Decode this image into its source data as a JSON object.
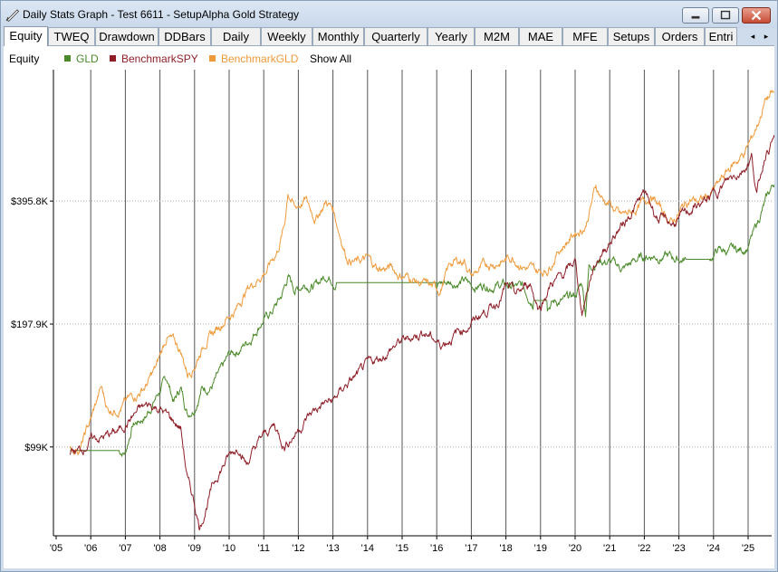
{
  "window": {
    "title": "Daily Stats Graph - Test 6611 - SetupAlpha Gold Strategy",
    "icons": {
      "app": "graph-pen-icon",
      "minimize": "minimize-icon",
      "maximize": "maximize-icon",
      "close": "close-icon"
    }
  },
  "tabs": [
    {
      "label": "Equity",
      "active": true
    },
    {
      "label": "TWEQ"
    },
    {
      "label": "Drawdown"
    },
    {
      "label": "DDBars"
    },
    {
      "label": "Daily"
    },
    {
      "label": "Weekly"
    },
    {
      "label": "Monthly"
    },
    {
      "label": "Quarterly"
    },
    {
      "label": "Yearly"
    },
    {
      "label": "M2M"
    },
    {
      "label": "MAE"
    },
    {
      "label": "MFE"
    },
    {
      "label": "Setups"
    },
    {
      "label": "Orders"
    },
    {
      "label": "Entri"
    }
  ],
  "tab_scroll": {
    "left": "◂",
    "right": "▸",
    "left_icon": "arrow-left-icon",
    "right_icon": "arrow-right-icon"
  },
  "legend": {
    "label": "Equity",
    "show_all": "Show All",
    "items": [
      {
        "name": "GLD",
        "color": "#4a8a2a"
      },
      {
        "name": "BenchmarkSPY",
        "color": "#8e1f28"
      },
      {
        "name": "BenchmarkGLD",
        "color": "#ef9a3a"
      }
    ]
  },
  "chart_data": {
    "type": "line",
    "x_ticks": [
      "'05",
      "'06",
      "'07",
      "'08",
      "'09",
      "'10",
      "'11",
      "'12",
      "'13",
      "'14",
      "'15",
      "'16",
      "'17",
      "'18",
      "'19",
      "'20",
      "'21",
      "'22",
      "'23",
      "'24",
      "'25"
    ],
    "y_scale": "log",
    "y_ticks": [
      {
        "label": "$99K",
        "value": 99000
      },
      {
        "label": "$197.9K",
        "value": 197900
      },
      {
        "label": "$395.8K",
        "value": 395800
      }
    ],
    "ylim": [
      60000,
      830000
    ],
    "grid": true,
    "series": [
      {
        "name": "GLD",
        "color": "#4a8a2a",
        "points": [
          [
            2005.4,
            97000
          ],
          [
            2005.8,
            97000
          ],
          [
            2006.3,
            97000
          ],
          [
            2006.8,
            97000
          ],
          [
            2007.0,
            96000
          ],
          [
            2007.2,
            112000
          ],
          [
            2007.6,
            118000
          ],
          [
            2007.9,
            132000
          ],
          [
            2008.2,
            145000
          ],
          [
            2008.4,
            128000
          ],
          [
            2008.6,
            138000
          ],
          [
            2008.8,
            120000
          ],
          [
            2009.0,
            125000
          ],
          [
            2009.2,
            138000
          ],
          [
            2009.5,
            140000
          ],
          [
            2009.8,
            152000
          ],
          [
            2010.0,
            165000
          ],
          [
            2010.3,
            172000
          ],
          [
            2010.6,
            182000
          ],
          [
            2010.9,
            200000
          ],
          [
            2011.2,
            210000
          ],
          [
            2011.5,
            230000
          ],
          [
            2011.7,
            258000
          ],
          [
            2011.9,
            240000
          ],
          [
            2012.2,
            250000
          ],
          [
            2012.5,
            245000
          ],
          [
            2012.8,
            262000
          ],
          [
            2013.0,
            257000
          ],
          [
            2013.1,
            250000
          ],
          [
            2013.5,
            250000
          ],
          [
            2014.0,
            250000
          ],
          [
            2015.0,
            250000
          ],
          [
            2016.0,
            250000
          ],
          [
            2016.4,
            251000
          ],
          [
            2016.8,
            252000
          ],
          [
            2017.0,
            245000
          ],
          [
            2017.5,
            248000
          ],
          [
            2018.0,
            246000
          ],
          [
            2018.5,
            242000
          ],
          [
            2018.8,
            226000
          ],
          [
            2019.2,
            226000
          ],
          [
            2019.7,
            225000
          ],
          [
            2020.0,
            232000
          ],
          [
            2020.2,
            250000
          ],
          [
            2020.3,
            212000
          ],
          [
            2020.4,
            275000
          ],
          [
            2020.7,
            285000
          ],
          [
            2021.0,
            280000
          ],
          [
            2021.4,
            270000
          ],
          [
            2021.8,
            285000
          ],
          [
            2022.2,
            292000
          ],
          [
            2022.6,
            290000
          ],
          [
            2022.9,
            286000
          ],
          [
            2023.2,
            285000
          ],
          [
            2023.5,
            285000
          ],
          [
            2023.9,
            285000
          ],
          [
            2024.1,
            300000
          ],
          [
            2024.5,
            298000
          ],
          [
            2024.8,
            300000
          ],
          [
            2025.0,
            308000
          ],
          [
            2025.2,
            335000
          ],
          [
            2025.4,
            375000
          ],
          [
            2025.6,
            410000
          ],
          [
            2025.8,
            450000
          ]
        ]
      },
      {
        "name": "BenchmarkSPY",
        "color": "#8e1f28",
        "points": [
          [
            2005.4,
            96000
          ],
          [
            2005.7,
            97000
          ],
          [
            2006.0,
            103000
          ],
          [
            2006.4,
            105000
          ],
          [
            2006.8,
            108000
          ],
          [
            2007.0,
            113000
          ],
          [
            2007.4,
            122000
          ],
          [
            2007.7,
            125000
          ],
          [
            2008.0,
            123000
          ],
          [
            2008.3,
            116000
          ],
          [
            2008.6,
            110000
          ],
          [
            2008.8,
            82000
          ],
          [
            2009.0,
            72000
          ],
          [
            2009.15,
            63000
          ],
          [
            2009.4,
            74000
          ],
          [
            2009.7,
            86000
          ],
          [
            2010.0,
            94000
          ],
          [
            2010.3,
            100000
          ],
          [
            2010.5,
            90000
          ],
          [
            2010.9,
            103000
          ],
          [
            2011.3,
            112000
          ],
          [
            2011.6,
            100000
          ],
          [
            2011.9,
            107000
          ],
          [
            2012.3,
            118000
          ],
          [
            2012.7,
            126000
          ],
          [
            2013.0,
            128000
          ],
          [
            2013.4,
            141000
          ],
          [
            2013.8,
            150000
          ],
          [
            2014.0,
            156000
          ],
          [
            2014.5,
            167000
          ],
          [
            2014.9,
            178000
          ],
          [
            2015.3,
            184000
          ],
          [
            2015.6,
            190000
          ],
          [
            2015.9,
            183000
          ],
          [
            2016.1,
            176000
          ],
          [
            2016.5,
            186000
          ],
          [
            2016.9,
            196000
          ],
          [
            2017.3,
            210000
          ],
          [
            2017.7,
            222000
          ],
          [
            2018.0,
            244000
          ],
          [
            2018.3,
            232000
          ],
          [
            2018.7,
            250000
          ],
          [
            2018.95,
            216000
          ],
          [
            2019.3,
            248000
          ],
          [
            2019.7,
            262000
          ],
          [
            2020.0,
            282000
          ],
          [
            2020.2,
            212000
          ],
          [
            2020.5,
            268000
          ],
          [
            2020.8,
            300000
          ],
          [
            2021.0,
            315000
          ],
          [
            2021.4,
            350000
          ],
          [
            2021.8,
            390000
          ],
          [
            2022.0,
            413000
          ],
          [
            2022.4,
            360000
          ],
          [
            2022.8,
            348000
          ],
          [
            2023.0,
            355000
          ],
          [
            2023.4,
            380000
          ],
          [
            2023.8,
            395000
          ],
          [
            2024.1,
            420000
          ],
          [
            2024.5,
            450000
          ],
          [
            2024.9,
            480000
          ],
          [
            2025.1,
            510000
          ],
          [
            2025.25,
            410000
          ],
          [
            2025.5,
            520000
          ],
          [
            2025.8,
            570000
          ]
        ]
      },
      {
        "name": "BenchmarkGLD",
        "color": "#ef9a3a",
        "points": [
          [
            2005.4,
            97000
          ],
          [
            2005.7,
            99000
          ],
          [
            2006.0,
            115000
          ],
          [
            2006.3,
            138000
          ],
          [
            2006.5,
            122000
          ],
          [
            2006.8,
            124000
          ],
          [
            2007.0,
            127000
          ],
          [
            2007.3,
            133000
          ],
          [
            2007.6,
            140000
          ],
          [
            2007.9,
            155000
          ],
          [
            2008.2,
            185000
          ],
          [
            2008.4,
            178000
          ],
          [
            2008.6,
            170000
          ],
          [
            2008.8,
            150000
          ],
          [
            2009.0,
            158000
          ],
          [
            2009.3,
            180000
          ],
          [
            2009.6,
            190000
          ],
          [
            2009.9,
            205000
          ],
          [
            2010.2,
            215000
          ],
          [
            2010.5,
            240000
          ],
          [
            2010.8,
            255000
          ],
          [
            2011.1,
            270000
          ],
          [
            2011.4,
            300000
          ],
          [
            2011.6,
            345000
          ],
          [
            2011.7,
            420000
          ],
          [
            2011.9,
            380000
          ],
          [
            2012.2,
            400000
          ],
          [
            2012.5,
            360000
          ],
          [
            2012.8,
            395000
          ],
          [
            2013.0,
            380000
          ],
          [
            2013.2,
            330000
          ],
          [
            2013.4,
            290000
          ],
          [
            2013.7,
            280000
          ],
          [
            2014.0,
            285000
          ],
          [
            2014.3,
            270000
          ],
          [
            2014.7,
            272000
          ],
          [
            2014.9,
            262000
          ],
          [
            2015.2,
            258000
          ],
          [
            2015.5,
            250000
          ],
          [
            2015.9,
            242000
          ],
          [
            2016.1,
            240000
          ],
          [
            2016.4,
            278000
          ],
          [
            2016.8,
            285000
          ],
          [
            2017.0,
            260000
          ],
          [
            2017.5,
            278000
          ],
          [
            2017.9,
            282000
          ],
          [
            2018.2,
            290000
          ],
          [
            2018.6,
            272000
          ],
          [
            2018.9,
            265000
          ],
          [
            2019.2,
            270000
          ],
          [
            2019.5,
            300000
          ],
          [
            2019.8,
            318000
          ],
          [
            2020.0,
            332000
          ],
          [
            2020.3,
            345000
          ],
          [
            2020.6,
            430000
          ],
          [
            2020.8,
            400000
          ],
          [
            2021.0,
            390000
          ],
          [
            2021.3,
            362000
          ],
          [
            2021.6,
            370000
          ],
          [
            2021.9,
            385000
          ],
          [
            2022.2,
            410000
          ],
          [
            2022.5,
            375000
          ],
          [
            2022.8,
            350000
          ],
          [
            2023.0,
            370000
          ],
          [
            2023.3,
            400000
          ],
          [
            2023.6,
            395000
          ],
          [
            2023.9,
            410000
          ],
          [
            2024.2,
            440000
          ],
          [
            2024.5,
            480000
          ],
          [
            2024.9,
            520000
          ],
          [
            2025.1,
            560000
          ],
          [
            2025.3,
            620000
          ],
          [
            2025.5,
            700000
          ],
          [
            2025.7,
            720000
          ],
          [
            2025.85,
            710000
          ]
        ]
      }
    ]
  }
}
